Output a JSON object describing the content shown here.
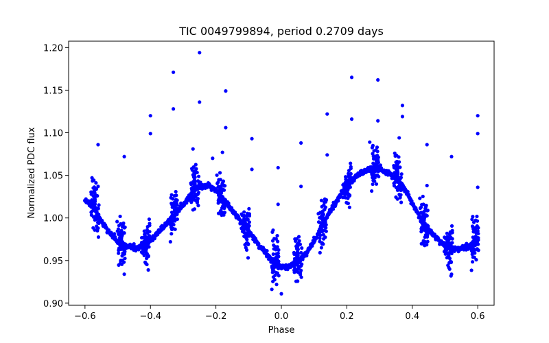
{
  "chart_data": {
    "type": "scatter",
    "title": "TIC 0049799894, period 0.2709 days",
    "xlabel": "Phase",
    "ylabel": "Normalized PDC flux",
    "xlim": [
      -0.65,
      0.65
    ],
    "ylim": [
      0.8975,
      1.2075
    ],
    "x_ticks": [
      -0.6,
      -0.4,
      -0.2,
      0.0,
      0.2,
      0.4,
      0.6
    ],
    "x_tick_labels": [
      "−0.6",
      "−0.4",
      "−0.2",
      "0.0",
      "0.2",
      "0.4",
      "0.6"
    ],
    "y_ticks": [
      0.9,
      0.95,
      1.0,
      1.05,
      1.1,
      1.15,
      1.2
    ],
    "y_tick_labels": [
      "0.90",
      "0.95",
      "1.00",
      "1.05",
      "1.10",
      "1.15",
      "1.20"
    ],
    "grid": false,
    "marker_color": "#0000ff",
    "series": [
      {
        "name": "PDC flux",
        "trend_x": [
          -0.6,
          -0.57,
          -0.55,
          -0.52,
          -0.5,
          -0.47,
          -0.44,
          -0.4,
          -0.37,
          -0.34,
          -0.3,
          -0.27,
          -0.25,
          -0.22,
          -0.2,
          -0.17,
          -0.14,
          -0.1,
          -0.07,
          -0.04,
          -0.02,
          0.0,
          0.02,
          0.05,
          0.07,
          0.1,
          0.13,
          0.17,
          0.2,
          0.23,
          0.27,
          0.3,
          0.33,
          0.37,
          0.4,
          0.43,
          0.47,
          0.5,
          0.53,
          0.56,
          0.6
        ],
        "trend_y": [
          1.021,
          1.01,
          0.995,
          0.98,
          0.972,
          0.966,
          0.964,
          0.973,
          0.985,
          0.997,
          1.015,
          1.03,
          1.037,
          1.037,
          1.032,
          1.018,
          1.003,
          0.985,
          0.968,
          0.955,
          0.946,
          0.942,
          0.942,
          0.947,
          0.955,
          0.972,
          0.995,
          1.02,
          1.037,
          1.049,
          1.057,
          1.057,
          1.052,
          1.038,
          1.017,
          0.995,
          0.977,
          0.967,
          0.963,
          0.964,
          0.972
        ],
        "scatter_zones": [
          {
            "x": -0.57,
            "spread": 0.04
          },
          {
            "x": -0.49,
            "spread": 0.035
          },
          {
            "x": -0.415,
            "spread": 0.035
          },
          {
            "x": -0.33,
            "spread": 0.03
          },
          {
            "x": -0.265,
            "spread": 0.035
          },
          {
            "x": -0.185,
            "spread": 0.03
          },
          {
            "x": -0.11,
            "spread": 0.035
          },
          {
            "x": -0.02,
            "spread": 0.04
          },
          {
            "x": 0.05,
            "spread": 0.035
          },
          {
            "x": 0.125,
            "spread": 0.035
          },
          {
            "x": 0.2,
            "spread": 0.03
          },
          {
            "x": 0.285,
            "spread": 0.03
          },
          {
            "x": 0.355,
            "spread": 0.035
          },
          {
            "x": 0.435,
            "spread": 0.035
          },
          {
            "x": 0.51,
            "spread": 0.035
          },
          {
            "x": 0.59,
            "spread": 0.035
          }
        ],
        "outliers": [
          {
            "x": -0.25,
            "y": 1.194
          },
          {
            "x": -0.33,
            "y": 1.171
          },
          {
            "x": -0.33,
            "y": 1.128
          },
          {
            "x": -0.25,
            "y": 1.136
          },
          {
            "x": -0.17,
            "y": 1.149
          },
          {
            "x": -0.17,
            "y": 1.106
          },
          {
            "x": -0.4,
            "y": 1.12
          },
          {
            "x": -0.4,
            "y": 1.099
          },
          {
            "x": -0.56,
            "y": 1.086
          },
          {
            "x": -0.48,
            "y": 1.072
          },
          {
            "x": -0.09,
            "y": 1.093
          },
          {
            "x": -0.09,
            "y": 1.057
          },
          {
            "x": -0.01,
            "y": 1.059
          },
          {
            "x": -0.01,
            "y": 1.016
          },
          {
            "x": 0.06,
            "y": 1.088
          },
          {
            "x": 0.06,
            "y": 1.037
          },
          {
            "x": 0.14,
            "y": 1.122
          },
          {
            "x": 0.14,
            "y": 1.074
          },
          {
            "x": 0.215,
            "y": 1.165
          },
          {
            "x": 0.215,
            "y": 1.116
          },
          {
            "x": 0.295,
            "y": 1.162
          },
          {
            "x": 0.295,
            "y": 1.114
          },
          {
            "x": 0.37,
            "y": 1.132
          },
          {
            "x": 0.37,
            "y": 1.119
          },
          {
            "x": 0.445,
            "y": 1.086
          },
          {
            "x": 0.445,
            "y": 1.038
          },
          {
            "x": 0.52,
            "y": 1.072
          },
          {
            "x": 0.6,
            "y": 1.12
          },
          {
            "x": 0.6,
            "y": 1.099
          },
          {
            "x": 0.6,
            "y": 1.036
          },
          {
            "x": -0.56,
            "y": 1.037
          },
          {
            "x": -0.48,
            "y": 0.934
          },
          {
            "x": -0.18,
            "y": 1.077
          },
          {
            "x": -0.27,
            "y": 1.081
          },
          {
            "x": 0.52,
            "y": 0.934
          },
          {
            "x": 0.0,
            "y": 0.911
          },
          {
            "x": -0.21,
            "y": 1.07
          },
          {
            "x": 0.27,
            "y": 1.089
          },
          {
            "x": 0.36,
            "y": 1.094
          }
        ]
      }
    ]
  }
}
